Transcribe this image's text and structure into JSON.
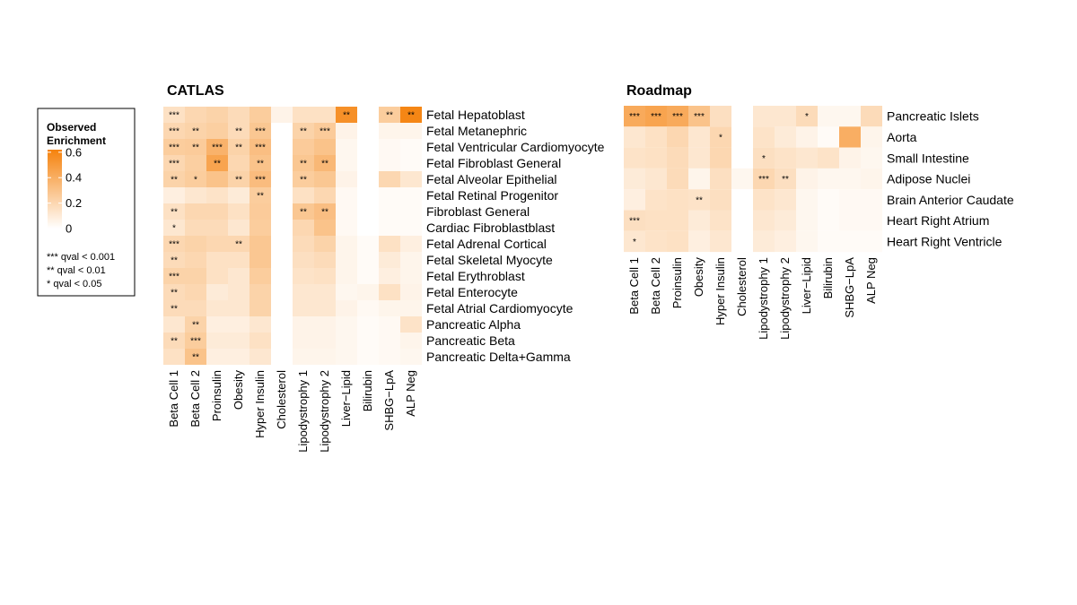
{
  "chart_data": [
    {
      "type": "heatmap",
      "title": "CATLAS",
      "columns": [
        "Beta Cell 1",
        "Beta Cell 2",
        "Proinsulin",
        "Obesity",
        "Hyper Insulin",
        "Cholesterol",
        "Lipodystrophy 1",
        "Lipodystrophy 2",
        "Liver−Lipid",
        "Bilirubin",
        "SHBG−LpA",
        "ALP Neg"
      ],
      "rows": [
        "Fetal Hepatoblast",
        "Fetal Metanephric",
        "Fetal Ventricular Cardiomyocyte",
        "Fetal Fibroblast General",
        "Fetal Alveolar Epithelial",
        "Fetal Retinal Progenitor",
        "Fibroblast General",
        "Cardiac Fibroblastblast",
        "Fetal Adrenal Cortical",
        "Fetal Skeletal Myocyte",
        "Fetal Erythroblast",
        "Fetal Enterocyte",
        "Fetal Atrial Cardiomyocyte",
        "Pancreatic Alpha",
        "Pancreatic Beta",
        "Pancreatic Delta+Gamma"
      ],
      "values": [
        [
          0.15,
          0.2,
          0.22,
          0.18,
          0.25,
          0.06,
          0.15,
          0.15,
          0.55,
          0.0,
          0.25,
          0.6
        ],
        [
          0.2,
          0.22,
          0.24,
          0.18,
          0.28,
          0.0,
          0.22,
          0.26,
          0.06,
          0.0,
          0.05,
          0.05
        ],
        [
          0.25,
          0.26,
          0.38,
          0.22,
          0.32,
          0.0,
          0.26,
          0.3,
          0.04,
          0.0,
          0.03,
          0.02
        ],
        [
          0.2,
          0.24,
          0.45,
          0.2,
          0.3,
          0.0,
          0.28,
          0.35,
          0.04,
          0.0,
          0.03,
          0.02
        ],
        [
          0.22,
          0.25,
          0.3,
          0.22,
          0.33,
          0.0,
          0.25,
          0.28,
          0.06,
          0.0,
          0.2,
          0.12
        ],
        [
          0.08,
          0.12,
          0.14,
          0.1,
          0.25,
          0.0,
          0.15,
          0.2,
          0.03,
          0.0,
          0.02,
          0.02
        ],
        [
          0.15,
          0.2,
          0.2,
          0.15,
          0.26,
          0.0,
          0.28,
          0.32,
          0.03,
          0.0,
          0.02,
          0.02
        ],
        [
          0.12,
          0.18,
          0.18,
          0.12,
          0.25,
          0.0,
          0.2,
          0.3,
          0.03,
          0.0,
          0.02,
          0.02
        ],
        [
          0.2,
          0.22,
          0.2,
          0.2,
          0.28,
          0.0,
          0.18,
          0.22,
          0.05,
          0.02,
          0.15,
          0.08
        ],
        [
          0.18,
          0.2,
          0.15,
          0.15,
          0.28,
          0.0,
          0.16,
          0.18,
          0.05,
          0.02,
          0.1,
          0.05
        ],
        [
          0.22,
          0.22,
          0.15,
          0.12,
          0.25,
          0.0,
          0.14,
          0.15,
          0.05,
          0.02,
          0.08,
          0.05
        ],
        [
          0.18,
          0.2,
          0.1,
          0.12,
          0.22,
          0.0,
          0.12,
          0.12,
          0.04,
          0.05,
          0.15,
          0.06
        ],
        [
          0.18,
          0.18,
          0.12,
          0.12,
          0.22,
          0.0,
          0.12,
          0.12,
          0.06,
          0.03,
          0.05,
          0.05
        ],
        [
          0.12,
          0.22,
          0.08,
          0.08,
          0.12,
          0.0,
          0.06,
          0.06,
          0.04,
          0.02,
          0.03,
          0.14
        ],
        [
          0.18,
          0.25,
          0.1,
          0.1,
          0.15,
          0.0,
          0.06,
          0.06,
          0.04,
          0.02,
          0.03,
          0.05
        ],
        [
          0.15,
          0.3,
          0.08,
          0.08,
          0.12,
          0.0,
          0.05,
          0.05,
          0.04,
          0.02,
          0.03,
          0.04
        ]
      ],
      "significance": [
        [
          "***",
          "",
          "",
          "",
          "",
          "",
          "",
          "",
          "**",
          "",
          "**",
          "**"
        ],
        [
          "***",
          "**",
          "",
          "**",
          "***",
          "",
          "**",
          "***",
          "",
          "",
          "",
          ""
        ],
        [
          "***",
          "**",
          "***",
          "**",
          "***",
          "",
          "",
          "",
          "",
          "",
          "",
          ""
        ],
        [
          "***",
          "",
          "**",
          "",
          "**",
          "",
          "**",
          "**",
          "",
          "",
          "",
          ""
        ],
        [
          "**",
          "*",
          "",
          "**",
          "***",
          "",
          "**",
          "",
          "",
          "",
          "",
          ""
        ],
        [
          "",
          "",
          "",
          "",
          "**",
          "",
          "",
          "",
          "",
          "",
          "",
          ""
        ],
        [
          "**",
          "",
          "",
          "",
          "",
          "",
          "**",
          "**",
          "",
          "",
          "",
          ""
        ],
        [
          "*",
          "",
          "",
          "",
          "",
          "",
          "",
          "",
          "",
          "",
          "",
          ""
        ],
        [
          "***",
          "",
          "",
          "**",
          "",
          "",
          "",
          "",
          "",
          "",
          "",
          ""
        ],
        [
          "**",
          "",
          "",
          "",
          "",
          "",
          "",
          "",
          "",
          "",
          "",
          ""
        ],
        [
          "***",
          "",
          "",
          "",
          "",
          "",
          "",
          "",
          "",
          "",
          "",
          ""
        ],
        [
          "**",
          "",
          "",
          "",
          "",
          "",
          "",
          "",
          "",
          "",
          "",
          ""
        ],
        [
          "**",
          "",
          "",
          "",
          "",
          "",
          "",
          "",
          "",
          "",
          "",
          ""
        ],
        [
          "",
          "**",
          "",
          "",
          "",
          "",
          "",
          "",
          "",
          "",
          "",
          ""
        ],
        [
          "**",
          "***",
          "",
          "",
          "",
          "",
          "",
          "",
          "",
          "",
          "",
          ""
        ],
        [
          "",
          "**",
          "",
          "",
          "",
          "",
          "",
          "",
          "",
          "",
          "",
          ""
        ]
      ]
    },
    {
      "type": "heatmap",
      "title": "Roadmap",
      "columns": [
        "Beta Cell 1",
        "Beta Cell 2",
        "Proinsulin",
        "Obesity",
        "Hyper Insulin",
        "Cholesterol",
        "Lipodystrophy 1",
        "Lipodystrophy 2",
        "Liver−Lipid",
        "Bilirubin",
        "SHBG−LpA",
        "ALP Neg"
      ],
      "rows": [
        "Pancreatic Islets",
        "Aorta",
        "Small Intestine",
        "Adipose Nuclei",
        "Brain Anterior Caudate",
        "Heart Right Atrium",
        "Heart Right Ventricle"
      ],
      "values": [
        [
          0.42,
          0.45,
          0.42,
          0.3,
          0.16,
          0.0,
          0.12,
          0.12,
          0.18,
          0.04,
          0.04,
          0.18
        ],
        [
          0.12,
          0.15,
          0.2,
          0.12,
          0.2,
          0.0,
          0.14,
          0.1,
          0.06,
          0.02,
          0.4,
          0.05
        ],
        [
          0.14,
          0.15,
          0.18,
          0.12,
          0.2,
          0.0,
          0.16,
          0.14,
          0.12,
          0.14,
          0.06,
          0.04
        ],
        [
          0.1,
          0.12,
          0.18,
          0.05,
          0.16,
          0.04,
          0.2,
          0.16,
          0.06,
          0.04,
          0.04,
          0.05
        ],
        [
          0.08,
          0.14,
          0.15,
          0.14,
          0.16,
          0.0,
          0.14,
          0.12,
          0.04,
          0.02,
          0.03,
          0.03
        ],
        [
          0.16,
          0.15,
          0.15,
          0.1,
          0.14,
          0.0,
          0.12,
          0.1,
          0.04,
          0.02,
          0.03,
          0.03
        ],
        [
          0.12,
          0.14,
          0.15,
          0.08,
          0.12,
          0.0,
          0.1,
          0.08,
          0.04,
          0.02,
          0.02,
          0.02
        ]
      ],
      "significance": [
        [
          "***",
          "***",
          "***",
          "***",
          "",
          "",
          "",
          "",
          "*",
          "",
          "",
          ""
        ],
        [
          "",
          "",
          "",
          "",
          "*",
          "",
          "",
          "",
          "",
          "",
          "",
          ""
        ],
        [
          "",
          "",
          "",
          "",
          "",
          "",
          "*",
          "",
          "",
          "",
          "",
          ""
        ],
        [
          "",
          "",
          "",
          "",
          "",
          "",
          "***",
          "**",
          "",
          "",
          "",
          ""
        ],
        [
          "",
          "",
          "",
          "**",
          "",
          "",
          "",
          "",
          "",
          "",
          "",
          ""
        ],
        [
          "***",
          "",
          "",
          "",
          "",
          "",
          "",
          "",
          "",
          "",
          "",
          ""
        ],
        [
          "*",
          "",
          "",
          "",
          "",
          "",
          "",
          "",
          "",
          "",
          "",
          ""
        ]
      ]
    }
  ],
  "legend": {
    "title_line1": "Observed",
    "title_line2": "Enrichment",
    "ticks": [
      "0.6",
      "0.4",
      "0.2",
      "0"
    ],
    "tick_values": [
      0.6,
      0.4,
      0.2,
      0
    ],
    "range": [
      0,
      0.62
    ],
    "notes": [
      "*** qval < 0.001",
      "** qval < 0.01",
      "* qval < 0.05"
    ]
  },
  "colors": {
    "low": "#ffffff",
    "high": "#f5820d"
  }
}
